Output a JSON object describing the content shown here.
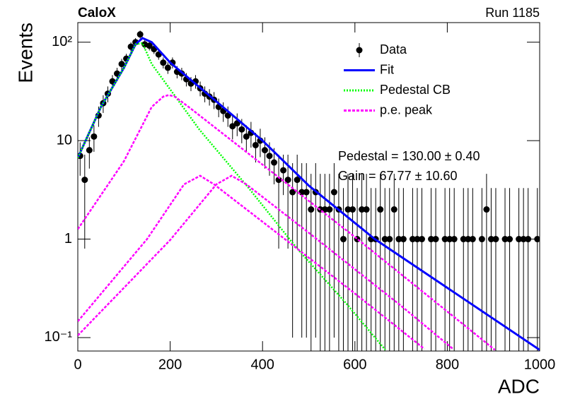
{
  "chart_data": {
    "type": "line",
    "title": "CaloX",
    "subtitle": "Run 1185",
    "x_label": "ADC",
    "y_label": "Events",
    "log_y": true,
    "legend": "top-right",
    "xlim": [
      0,
      1000
    ],
    "xticks": [
      0,
      200,
      400,
      600,
      800,
      1000
    ],
    "ylim": [
      0.073,
      158
    ],
    "yticks": [
      {
        "value": 0.1,
        "label": "10⁻¹"
      },
      1,
      10,
      {
        "value": 100,
        "label": "10²"
      }
    ],
    "annotations": [
      "Pedestal = 130.00 ± 0.40",
      "Gain = 67.77 ± 10.60"
    ],
    "series": [
      {
        "name": "Data",
        "color": "#000000",
        "style": "points",
        "x": [
          5,
          15,
          25,
          35,
          45,
          55,
          65,
          75,
          85,
          95,
          105,
          115,
          125,
          135,
          145,
          155,
          165,
          175,
          185,
          195,
          205,
          215,
          225,
          235,
          245,
          255,
          265,
          275,
          285,
          295,
          305,
          315,
          325,
          335,
          345,
          355,
          365,
          375,
          385,
          395,
          405,
          415,
          425,
          435,
          445,
          455,
          465,
          475,
          485,
          495,
          505,
          515,
          525,
          535,
          545,
          555,
          565,
          575,
          585,
          595,
          605,
          615,
          625,
          635,
          645,
          655,
          665,
          675,
          685,
          695,
          705,
          715,
          725,
          735,
          745,
          755,
          765,
          775,
          785,
          795,
          805,
          815,
          825,
          835,
          845,
          855,
          865,
          875,
          885,
          895,
          905,
          915,
          925,
          935,
          945,
          955,
          965,
          975,
          985,
          995
        ],
        "values": [
          7,
          4,
          8,
          11,
          18,
          24,
          30,
          40,
          48,
          60,
          68,
          90,
          100,
          120,
          95,
          92,
          85,
          75,
          62,
          55,
          62,
          50,
          48,
          42,
          38,
          40,
          34,
          30,
          28,
          26,
          22,
          20,
          18,
          14,
          15,
          13,
          11,
          12,
          9,
          10,
          8,
          7,
          6,
          4,
          5,
          4,
          3,
          4,
          3,
          3,
          2,
          3,
          2,
          2,
          2,
          3,
          2,
          1,
          2,
          2,
          1,
          2,
          2,
          1,
          1,
          2,
          1,
          1,
          2,
          1,
          1,
          null,
          1,
          1,
          1,
          null,
          1,
          1,
          null,
          1,
          1,
          1,
          null,
          1,
          1,
          1,
          null,
          1,
          2,
          1,
          1,
          null,
          1,
          1,
          null,
          1,
          1,
          1,
          null,
          1
        ],
        "errors": [
          2.6,
          3.2,
          2.8,
          3.3,
          4.2,
          4.9,
          5.5,
          6.3,
          6.9,
          7.7,
          8.2,
          9.5,
          10,
          11,
          9.7,
          9.6,
          9.2,
          8.7,
          7.9,
          7.4,
          7.9,
          7.1,
          6.9,
          6.5,
          6.2,
          6.3,
          5.8,
          5.5,
          5.3,
          5.1,
          4.7,
          4.5,
          4.2,
          3.7,
          3.9,
          3.6,
          3.3,
          3.5,
          3,
          3.2,
          2.8,
          2.6,
          2.4,
          3.2,
          2.2,
          3.2,
          2.9,
          3.2,
          2.9,
          2.9,
          2.6,
          2.9,
          2.6,
          2.6,
          2.6,
          2.9,
          2.6,
          2.3,
          2.6,
          2.6,
          2.3,
          2.6,
          2.6,
          2.3,
          2.3,
          2.6,
          2.3,
          2.3,
          2.6,
          2.3,
          2.3,
          null,
          2.3,
          2.3,
          2.3,
          null,
          2.3,
          2.3,
          null,
          2.3,
          2.3,
          2.3,
          null,
          2.3,
          2.3,
          2.3,
          null,
          2.3,
          2.6,
          2.3,
          2.3,
          null,
          2.3,
          2.3,
          null,
          2.3,
          2.3,
          2.3,
          null,
          2.3
        ]
      },
      {
        "name": "Fit",
        "color": "#0000ff",
        "style": "solid",
        "curves": [
          {
            "x": [
              0,
              50,
              100,
              125,
              140,
              160,
              200,
              300,
              400,
              500,
              643,
              800,
              1000
            ],
            "values": [
              6.7,
              22,
              55,
              95,
              110,
              100,
              62,
              25,
              10,
              3.5,
              1,
              0.32,
              0.075
            ]
          }
        ]
      },
      {
        "name": "Pedestal CB",
        "color": "#00ff00",
        "style": "dotted",
        "curves": [
          {
            "x": [
              0,
              50,
              100,
              125,
              140,
              160,
              263,
              370,
              475,
              582,
              666
            ],
            "values": [
              6.7,
              22,
              55,
              95,
              98,
              60,
              13,
              3.3,
              0.8,
              0.22,
              0.075
            ]
          }
        ]
      },
      {
        "name": "p.e. peak",
        "color": "#ff00ff",
        "style": "dashed",
        "curves": [
          {
            "x": [
              0,
              100,
              160,
              185,
              197,
              210,
              240,
              400,
              600,
              903
            ],
            "values": [
              1.26,
              6.2,
              22,
              28,
              29,
              28,
              22,
              5.7,
              1.05,
              0.075
            ]
          },
          {
            "x": [
              0,
              150,
              230,
              265,
              295,
              400,
              600,
              750
            ],
            "values": [
              0.146,
              1,
              3.6,
              4.4,
              3.6,
              1.5,
              0.28,
              0.077
            ]
          },
          {
            "x": [
              0,
              200,
              300,
              333,
              365,
              500,
              700,
              812
            ],
            "values": [
              0.105,
              0.98,
              3.6,
              4.4,
              3.6,
              1.16,
              0.21,
              0.077
            ]
          }
        ]
      }
    ]
  }
}
